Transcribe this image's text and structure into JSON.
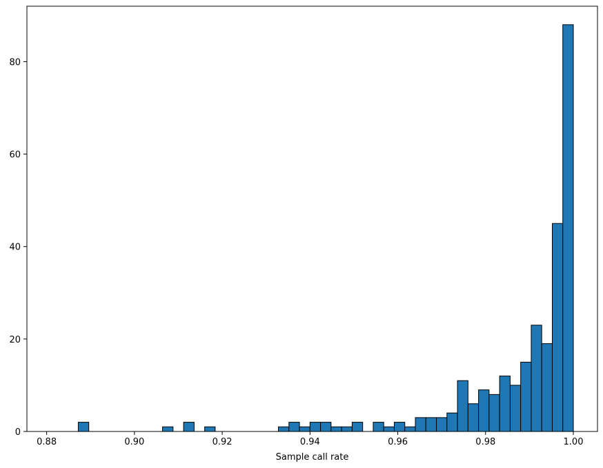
{
  "chart_data": {
    "type": "bar",
    "subtype": "histogram",
    "title": "",
    "xlabel": "Sample call rate",
    "ylabel": "",
    "xlim": [
      0.8755,
      1.0055
    ],
    "ylim": [
      0,
      92
    ],
    "xticks": [
      0.88,
      0.9,
      0.92,
      0.94,
      0.96,
      0.98,
      1.0
    ],
    "xtick_labels": [
      "0.88",
      "0.90",
      "0.92",
      "0.94",
      "0.96",
      "0.98",
      "1.00"
    ],
    "yticks": [
      0,
      20,
      40,
      60,
      80
    ],
    "ytick_labels": [
      "0",
      "20",
      "40",
      "60",
      "80"
    ],
    "grid": false,
    "bar_color": "#1f77b4",
    "edge_color": "#000000",
    "bin_start": 0.88,
    "bin_width": 0.0024,
    "counts": [
      0,
      0,
      0,
      2,
      0,
      0,
      0,
      0,
      0,
      0,
      0,
      1,
      0,
      2,
      0,
      1,
      0,
      0,
      0,
      0,
      0,
      0,
      1,
      2,
      1,
      2,
      2,
      1,
      1,
      2,
      0,
      2,
      1,
      2,
      1,
      3,
      3,
      3,
      4,
      11,
      6,
      9,
      8,
      12,
      10,
      15,
      23,
      19,
      45,
      88
    ]
  }
}
